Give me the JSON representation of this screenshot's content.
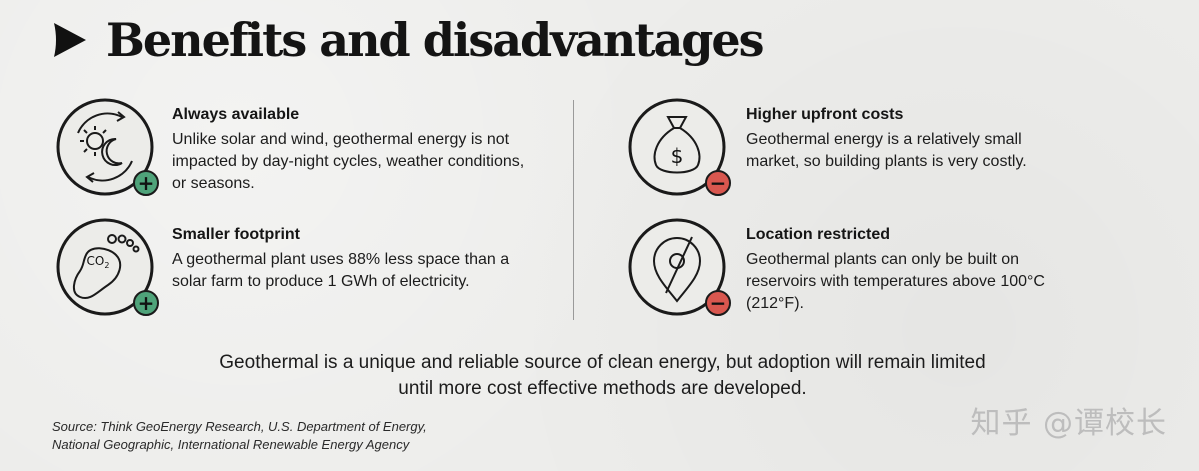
{
  "header": {
    "title": "Benefits and disadvantages",
    "arrow_icon": "play-arrow-icon"
  },
  "benefits": [
    {
      "title": "Always available",
      "text": "Unlike solar and wind, geothermal energy is not impacted by day-night cycles, weather conditions, or seasons.",
      "icon": "sun-moon-cycle-icon",
      "badge": "+"
    },
    {
      "title": "Smaller footprint",
      "text": "A geothermal plant uses 88% less space than a solar farm to produce 1 GWh of electricity.",
      "icon": "carbon-footprint-icon",
      "icon_label": "CO",
      "icon_sub": "2",
      "badge": "+"
    }
  ],
  "disadvantages": [
    {
      "title": "Higher upfront costs",
      "text": "Geothermal energy is a relatively small market, so building plants is very costly.",
      "icon": "money-bag-icon",
      "icon_label": "$",
      "badge": "−"
    },
    {
      "title": "Location restricted",
      "text": "Geothermal plants can only be built on reservoirs with temperatures above 100°C (212°F).",
      "icon": "location-restricted-icon",
      "badge": "−"
    }
  ],
  "summary": "Geothermal is a unique and reliable source of clean energy, but adoption will remain limited until more cost effective methods are developed.",
  "source": {
    "line1": "Source: Think GeoEnergy Research, U.S. Department of Energy,",
    "line2": "National Geographic, International Renewable Energy Agency"
  },
  "watermark": "知乎 @谭校长",
  "colors": {
    "positive_badge": "#4fa37a",
    "negative_badge": "#d9574f",
    "ink": "#1a1a1a"
  }
}
